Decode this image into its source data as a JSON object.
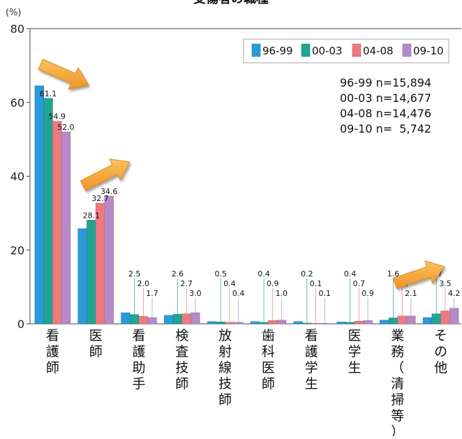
{
  "chart_data": {
    "type": "bar",
    "title": "受傷者の職種",
    "ylabel": "(%)",
    "ylim": [
      0,
      80
    ],
    "yticks": [
      0,
      20,
      40,
      60,
      80
    ],
    "grid": false,
    "legend_position": "top-right",
    "categories": [
      "看護師",
      "医師",
      "看護助手",
      "検査技師",
      "放射線技師",
      "歯科医師",
      "看護学生",
      "医学生",
      "業務（清掃等）",
      "その他"
    ],
    "series": [
      {
        "name": "96-99",
        "color": "#2a9ad8",
        "values": [
          64.5,
          25.8,
          3.0,
          2.3,
          0.6,
          0.6,
          0.6,
          0.5,
          1.0,
          1.7
        ]
      },
      {
        "name": "00-03",
        "color": "#1fa593",
        "values": [
          61.1,
          28.1,
          2.5,
          2.6,
          0.5,
          0.4,
          0.2,
          0.4,
          1.6,
          2.7
        ]
      },
      {
        "name": "04-08",
        "color": "#ee7a80",
        "values": [
          54.9,
          32.7,
          2.0,
          2.7,
          0.4,
          0.9,
          0.1,
          0.7,
          2.1,
          3.5
        ]
      },
      {
        "name": "09-10",
        "color": "#b689c9",
        "values": [
          52.0,
          34.6,
          1.7,
          3.0,
          0.4,
          1.0,
          0.1,
          0.9,
          2.1,
          4.2
        ]
      }
    ],
    "value_labels": [
      [
        "",
        "61.1",
        "54.9",
        "52.0"
      ],
      [
        "",
        "28.1",
        "32.7",
        "34.6"
      ],
      [
        "",
        "2.5",
        "2.0",
        "1.7"
      ],
      [
        "",
        "2.6",
        "2.7",
        "3.0"
      ],
      [
        "",
        "0.5",
        "0.4",
        "0.4"
      ],
      [
        "",
        "0.4",
        "0.9",
        "1.0"
      ],
      [
        "",
        "0.2",
        "0.1",
        "0.1"
      ],
      [
        "",
        "0.4",
        "0.7",
        "0.9"
      ],
      [
        "",
        "1.6",
        "2.1",
        "2.1"
      ],
      [
        "",
        "2.7",
        "3.5",
        "4.2"
      ]
    ],
    "annotations": [
      "96-99 n=15,894",
      "00-03 n=14,677",
      "04-08 n=14,476",
      "09-10 n=  5,742"
    ],
    "arrow_color": "#f4a535",
    "arrow_categories": [
      "看護師",
      "医師",
      "その他"
    ]
  }
}
